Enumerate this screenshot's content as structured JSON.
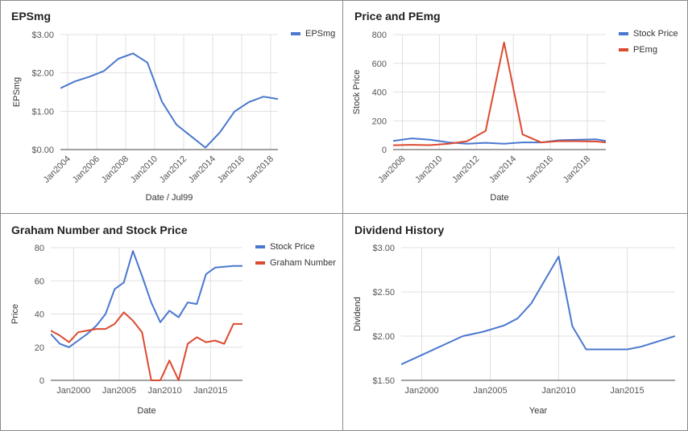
{
  "colors": {
    "blue": "#4a78cf",
    "red": "#dc4a2f",
    "grid": "#e0e0e0",
    "axis": "#444444",
    "text": "#555555"
  },
  "chart_data": [
    {
      "type": "line",
      "title": "EPSmg",
      "xlabel": "Date / Jul99",
      "ylabel": "EPSmg",
      "x": [
        "2003-07",
        "2004-07",
        "2005-07",
        "2006-07",
        "2007-07",
        "2008-07",
        "2009-07",
        "2010-07",
        "2011-07",
        "2012-07",
        "2013-07",
        "2014-07",
        "2015-07",
        "2016-07",
        "2017-07",
        "2018-07"
      ],
      "series": [
        {
          "name": "EPSmg",
          "color": "#4a78cf",
          "values": [
            1.6,
            1.78,
            1.9,
            2.05,
            2.37,
            2.51,
            2.27,
            1.25,
            0.65,
            0.35,
            0.05,
            0.45,
            0.99,
            1.24,
            1.38,
            1.32
          ]
        }
      ],
      "xlim": [
        "2003-07",
        "2018-07"
      ],
      "xticks": [
        "Jan2004",
        "Jan2006",
        "Jan2008",
        "Jan2010",
        "Jan2012",
        "Jan2014",
        "Jan2016",
        "Jan2018"
      ],
      "yticks": [
        "$0.00",
        "$1.00",
        "$2.00",
        "$3.00"
      ],
      "ylim": [
        0,
        3
      ],
      "legend": "top-right",
      "grid": true
    },
    {
      "type": "line",
      "title": "Price and PEmg",
      "xlabel": "Date",
      "ylabel": "Stock Price",
      "x": [
        "2007-07",
        "2008-07",
        "2009-07",
        "2010-07",
        "2011-07",
        "2012-07",
        "2013-07",
        "2014-07",
        "2015-07",
        "2016-07",
        "2017-07",
        "2018-07",
        "2019-01"
      ],
      "series": [
        {
          "name": "Stock Price",
          "color": "#4a78cf",
          "values": [
            60,
            78,
            68,
            50,
            40,
            47,
            41,
            50,
            50,
            65,
            69,
            71,
            60
          ]
        },
        {
          "name": "PEmg",
          "color": "#dc4a2f",
          "values": [
            30,
            33,
            31,
            40,
            58,
            130,
            745,
            105,
            50,
            59,
            58,
            56,
            50
          ]
        }
      ],
      "xlim": [
        "2007-07",
        "2019-01"
      ],
      "xticks": [
        "Jan2008",
        "Jan2010",
        "Jan2012",
        "Jan2014",
        "Jan2016",
        "Jan2018"
      ],
      "yticks": [
        "0",
        "200",
        "400",
        "600",
        "800"
      ],
      "ylim": [
        0,
        800
      ],
      "legend": "top-right",
      "grid": true
    },
    {
      "type": "line",
      "title": "Graham Number and Stock Price",
      "xlabel": "Date",
      "ylabel": "Price",
      "x": [
        "1997-07",
        "1998-07",
        "1999-07",
        "2000-07",
        "2001-07",
        "2002-07",
        "2003-07",
        "2004-07",
        "2005-07",
        "2006-07",
        "2007-07",
        "2008-07",
        "2009-07",
        "2010-07",
        "2011-07",
        "2012-07",
        "2013-07",
        "2014-07",
        "2015-07",
        "2016-07",
        "2017-07",
        "2018-07"
      ],
      "series": [
        {
          "name": "Stock Price",
          "color": "#4a78cf",
          "values": [
            28,
            22,
            20,
            24,
            28,
            33,
            40,
            55,
            59,
            78,
            63,
            47,
            35,
            42,
            38,
            47,
            46,
            64,
            68,
            68.5,
            69,
            69
          ]
        },
        {
          "name": "Graham Number",
          "color": "#dc4a2f",
          "values": [
            30,
            27,
            23,
            29,
            30,
            31,
            31,
            34,
            41,
            36,
            29,
            0,
            0,
            12,
            0,
            22,
            26,
            23,
            24,
            22,
            34,
            34
          ]
        }
      ],
      "xlim": [
        "1997-07",
        "2018-07"
      ],
      "xticks": [
        "Jan2000",
        "Jan2005",
        "Jan2010",
        "Jan2015"
      ],
      "yticks": [
        "0",
        "20",
        "40",
        "60",
        "80"
      ],
      "ylim": [
        0,
        80
      ],
      "legend": "top-right",
      "grid": true
    },
    {
      "type": "line",
      "title": "Dividend History",
      "xlabel": "Year",
      "ylabel": "Dividend",
      "x": [
        "1998-07",
        "2003-01",
        "2004-07",
        "2006-01",
        "2007-01",
        "2008-01",
        "2010-01",
        "2011-01",
        "2012-01",
        "2015-01",
        "2016-01",
        "2018-07"
      ],
      "series": [
        {
          "name": "Dividend",
          "color": "#4a78cf",
          "values": [
            1.68,
            2.0,
            2.05,
            2.12,
            2.2,
            2.37,
            2.9,
            2.11,
            1.85,
            1.85,
            1.88,
            2.0
          ]
        }
      ],
      "xlim": [
        "1998-07",
        "2018-07"
      ],
      "xticks": [
        "Jan2000",
        "Jan2005",
        "Jan2010",
        "Jan2015"
      ],
      "yticks": [
        "$1.50",
        "$2.00",
        "$2.50",
        "$3.00"
      ],
      "ylim": [
        1.5,
        3
      ],
      "legend": "none",
      "grid": true
    }
  ]
}
